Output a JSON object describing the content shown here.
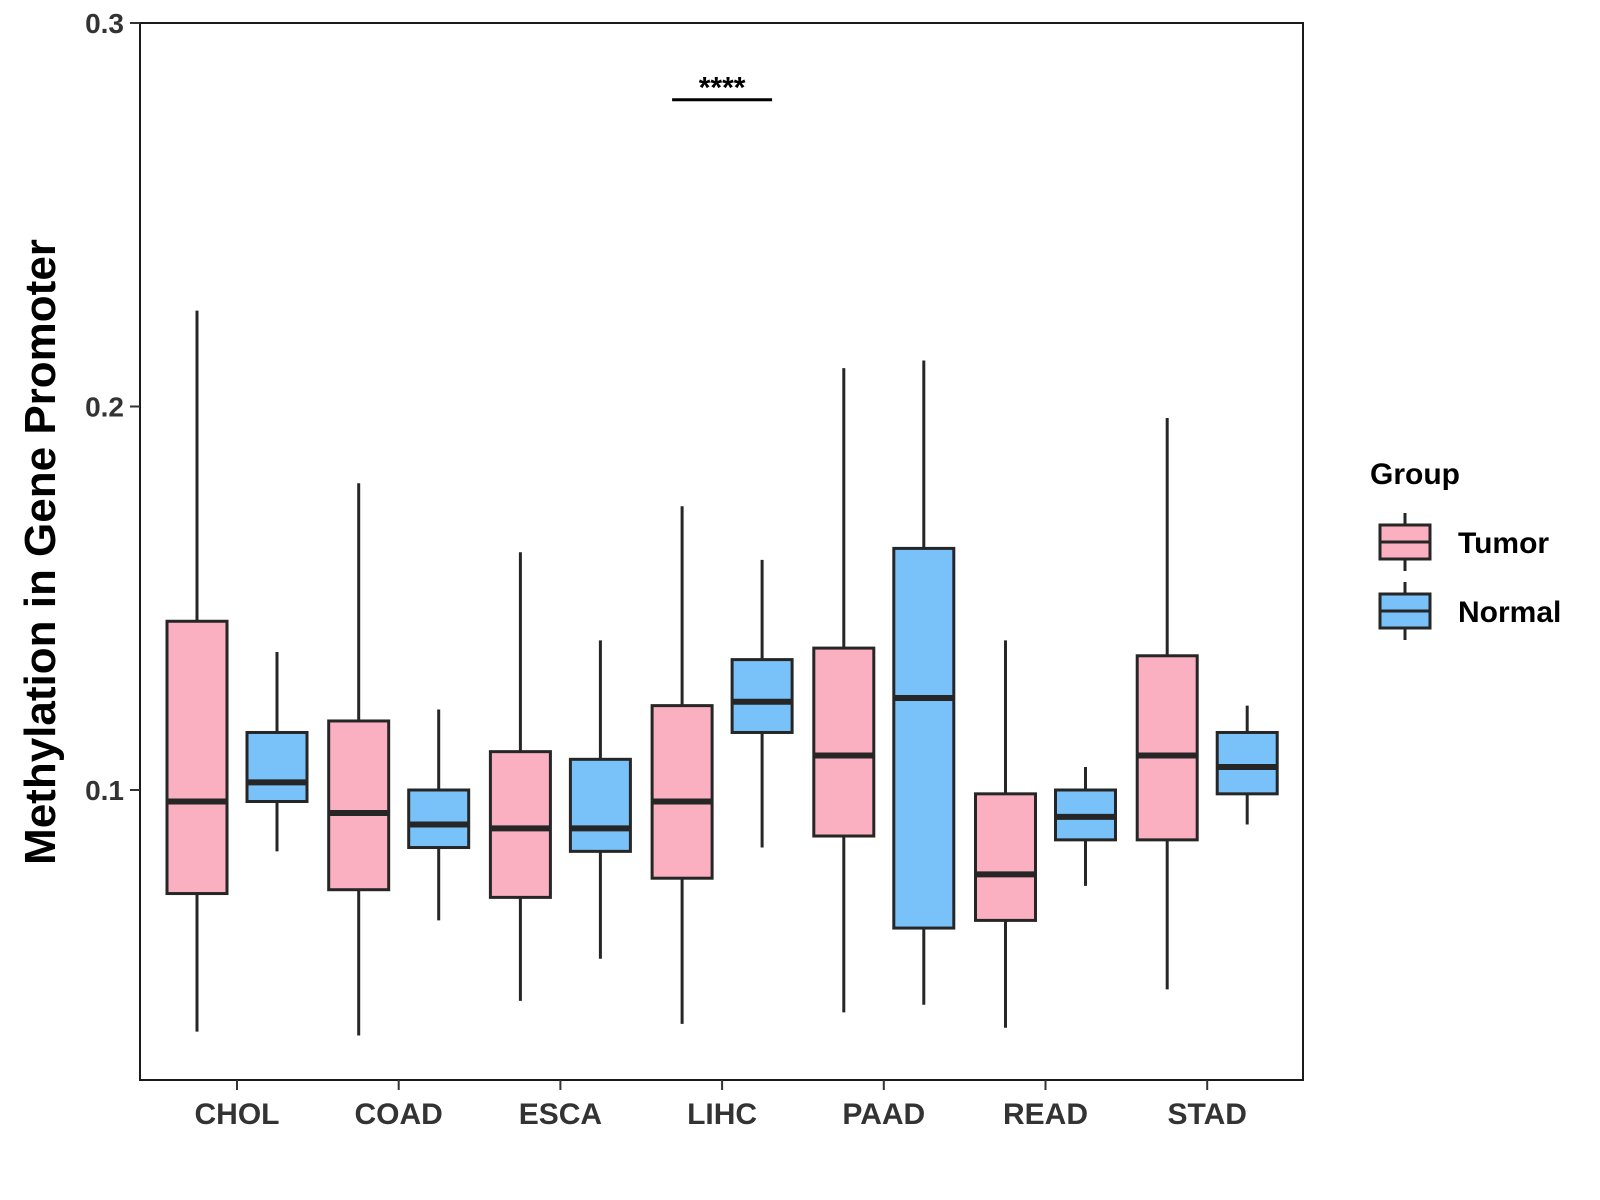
{
  "chart_data": {
    "type": "boxplot",
    "title": "",
    "xlabel": "",
    "ylabel": "Methylation in Gene Promoter",
    "ylim": [
      0.025,
      0.3
    ],
    "yticks": [
      0.1,
      0.2,
      0.3
    ],
    "ytick_labels": [
      "0.1",
      "0.2",
      "0.3"
    ],
    "categories": [
      "CHOL",
      "COAD",
      "ESCA",
      "LIHC",
      "PAAD",
      "READ",
      "STAD"
    ],
    "legend": {
      "title": "Group",
      "position": "right",
      "entries": [
        "Tumor",
        "Normal"
      ]
    },
    "colors": {
      "Tumor": "#FBB0C2",
      "Normal": "#79C2F9",
      "outline": "#262626"
    },
    "series": [
      {
        "name": "Tumor",
        "boxes": [
          {
            "min": 0.037,
            "q1": 0.073,
            "median": 0.097,
            "q3": 0.144,
            "max": 0.225
          },
          {
            "min": 0.036,
            "q1": 0.074,
            "median": 0.094,
            "q3": 0.118,
            "max": 0.18
          },
          {
            "min": 0.045,
            "q1": 0.072,
            "median": 0.09,
            "q3": 0.11,
            "max": 0.162
          },
          {
            "min": 0.039,
            "q1": 0.077,
            "median": 0.097,
            "q3": 0.122,
            "max": 0.174
          },
          {
            "min": 0.042,
            "q1": 0.088,
            "median": 0.109,
            "q3": 0.137,
            "max": 0.21
          },
          {
            "min": 0.038,
            "q1": 0.066,
            "median": 0.078,
            "q3": 0.099,
            "max": 0.139
          },
          {
            "min": 0.048,
            "q1": 0.087,
            "median": 0.109,
            "q3": 0.135,
            "max": 0.197
          }
        ]
      },
      {
        "name": "Normal",
        "boxes": [
          {
            "min": 0.084,
            "q1": 0.097,
            "median": 0.102,
            "q3": 0.115,
            "max": 0.136
          },
          {
            "min": 0.066,
            "q1": 0.085,
            "median": 0.091,
            "q3": 0.1,
            "max": 0.121
          },
          {
            "min": 0.056,
            "q1": 0.084,
            "median": 0.09,
            "q3": 0.108,
            "max": 0.139
          },
          {
            "min": 0.085,
            "q1": 0.115,
            "median": 0.123,
            "q3": 0.134,
            "max": 0.16
          },
          {
            "min": 0.044,
            "q1": 0.064,
            "median": 0.124,
            "q3": 0.163,
            "max": 0.212
          },
          {
            "min": 0.075,
            "q1": 0.087,
            "median": 0.093,
            "q3": 0.1,
            "max": 0.106
          },
          {
            "min": 0.091,
            "q1": 0.099,
            "median": 0.106,
            "q3": 0.115,
            "max": 0.122
          }
        ]
      }
    ],
    "annotations": [
      {
        "category": "LIHC",
        "text": "****",
        "y": 0.28
      }
    ]
  }
}
